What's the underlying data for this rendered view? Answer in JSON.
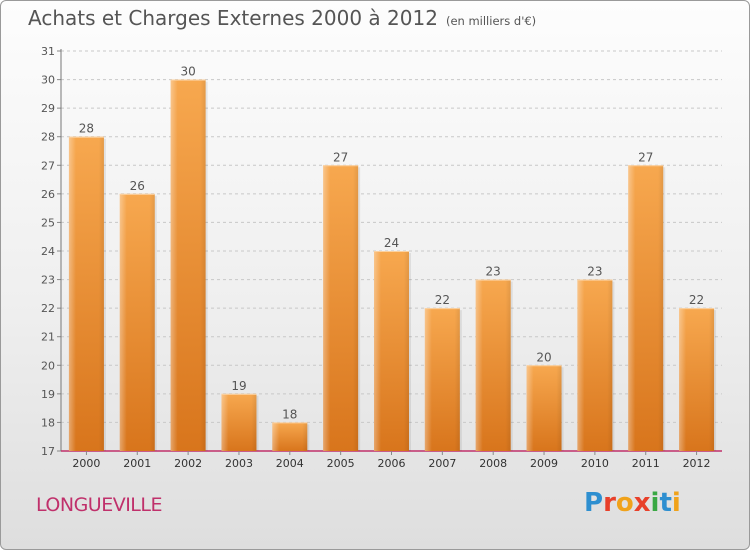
{
  "title": "Achats et Charges Externes 2000 à 2012",
  "subtitle": "(en milliers d'€)",
  "town": "LONGUEVILLE",
  "brand": {
    "text": "Proxiti",
    "letter_colors": [
      "#2e8fd0",
      "#e8402a",
      "#f0a21a",
      "#e8402a",
      "#3aa844",
      "#2e8fd0",
      "#f0a21a"
    ]
  },
  "colors": {
    "bar_light": "#f7a84f",
    "bar_dark": "#d8751c",
    "axis_red": "#c0306b",
    "text": "#555555"
  },
  "chart_data": {
    "type": "bar",
    "categories": [
      "2000",
      "2001",
      "2002",
      "2003",
      "2004",
      "2005",
      "2006",
      "2007",
      "2008",
      "2009",
      "2010",
      "2011",
      "2012"
    ],
    "values": [
      28,
      26,
      30,
      19,
      18,
      27,
      24,
      22,
      23,
      20,
      23,
      27,
      22
    ],
    "ylim": [
      17,
      31
    ],
    "yticks": [
      17,
      18,
      19,
      20,
      21,
      22,
      23,
      24,
      25,
      26,
      27,
      28,
      29,
      30,
      31
    ],
    "grid": true
  }
}
